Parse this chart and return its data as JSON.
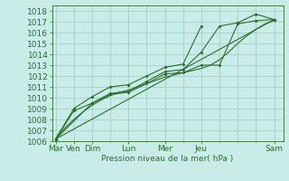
{
  "background_color": "#c8ece8",
  "grid_color": "#a0c8c4",
  "line_color": "#2d6e2d",
  "ylabel_text": "Pression niveau de la mer( hPa )",
  "ylim": [
    1006,
    1018.5
  ],
  "yticks": [
    1006,
    1007,
    1008,
    1009,
    1010,
    1011,
    1012,
    1013,
    1014,
    1015,
    1016,
    1017,
    1018
  ],
  "day_positions": [
    0,
    1,
    2,
    4,
    6,
    8,
    12
  ],
  "day_labels": [
    "Mar",
    "Ven",
    "Dim",
    "Lun",
    "Mer",
    "Jeu",
    "Sam"
  ],
  "minor_positions": [
    3,
    5,
    7,
    9,
    10,
    11
  ],
  "xlim": [
    -0.2,
    12.5
  ],
  "line1_x": [
    0,
    0.5,
    1,
    1.5,
    2,
    2.5,
    3,
    3.5,
    4,
    4.5,
    5,
    5.5,
    6,
    6.5,
    7,
    7.5,
    8,
    8.5,
    9,
    9.5,
    10,
    10.5,
    11,
    11.5,
    12
  ],
  "line1_y": [
    1006.2,
    1007.2,
    1008.0,
    1008.7,
    1009.3,
    1009.8,
    1010.2,
    1010.5,
    1010.7,
    1011.0,
    1011.3,
    1011.6,
    1011.9,
    1012.1,
    1012.3,
    1012.5,
    1012.7,
    1013.0,
    1013.5,
    1014.2,
    1015.0,
    1015.7,
    1016.3,
    1016.8,
    1017.1
  ],
  "line2_x": [
    0,
    1,
    2,
    3,
    4,
    5,
    6,
    7,
    8,
    9,
    10,
    11,
    12
  ],
  "line2_y": [
    1006.2,
    1008.8,
    1009.5,
    1010.3,
    1010.5,
    1011.3,
    1012.2,
    1012.3,
    1013.0,
    1013.0,
    1016.8,
    1017.1,
    1017.2
  ],
  "line3_x": [
    0,
    2,
    3,
    4,
    5,
    6,
    7,
    8,
    9,
    10,
    11,
    12
  ],
  "line3_y": [
    1006.2,
    1009.5,
    1010.4,
    1010.6,
    1011.5,
    1012.4,
    1012.6,
    1014.2,
    1016.6,
    1016.9,
    1017.7,
    1017.2
  ],
  "line4_x": [
    0,
    1,
    2,
    3,
    4,
    5,
    6,
    7,
    8
  ],
  "line4_y": [
    1006.2,
    1009.0,
    1010.1,
    1011.0,
    1011.2,
    1012.0,
    1012.8,
    1013.1,
    1016.6
  ],
  "trend_x": [
    0,
    12
  ],
  "trend_y": [
    1006.2,
    1017.2
  ],
  "fontsize": 6.5,
  "tick_color": "#2d6e2d",
  "spine_color": "#2d6e2d"
}
